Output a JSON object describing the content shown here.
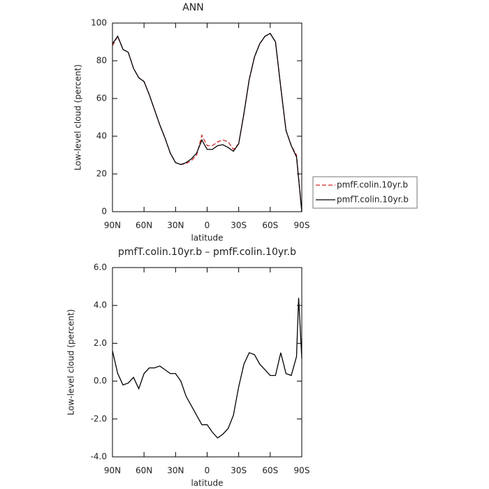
{
  "chart_data": [
    {
      "type": "line",
      "title": "ANN",
      "xlabel": "latitude",
      "ylabel": "Low-level cloud (percent)",
      "x": [
        90,
        85,
        80,
        75,
        70,
        65,
        60,
        55,
        50,
        45,
        40,
        35,
        30,
        25,
        20,
        15,
        10,
        5,
        0,
        -5,
        -10,
        -15,
        -20,
        -25,
        -30,
        -35,
        -40,
        -45,
        -50,
        -55,
        -60,
        -65,
        -70,
        -75,
        -80,
        -85,
        -90
      ],
      "series": [
        {
          "name": "pmfF.colin.10yr.b",
          "color": "#d62728",
          "dashed": true,
          "values": [
            88,
            93,
            86,
            84.5,
            76,
            71,
            69,
            62,
            54,
            46,
            39,
            31,
            26,
            25,
            25.5,
            27,
            30,
            40.5,
            35,
            35,
            37,
            38,
            37,
            33,
            36,
            52,
            70,
            82,
            89,
            93,
            94.5,
            90,
            66,
            43,
            35,
            30,
            0
          ]
        },
        {
          "name": "pmfT.colin.10yr.b",
          "color": "#000000",
          "dashed": false,
          "values": [
            89,
            93,
            86,
            84.5,
            76,
            71,
            69,
            62,
            54,
            46,
            39,
            31,
            26,
            25,
            26,
            28,
            31,
            38,
            33,
            33,
            35,
            35.5,
            34,
            32,
            36,
            52,
            70,
            82,
            89,
            93,
            94.5,
            90,
            66,
            43,
            35,
            29,
            0
          ]
        }
      ],
      "xlim": [
        90,
        -90
      ],
      "xticks": [
        {
          "value": 90,
          "label": "90N"
        },
        {
          "value": 60,
          "label": "60N"
        },
        {
          "value": 30,
          "label": "30N"
        },
        0,
        {
          "value": -30,
          "label": "30S"
        },
        {
          "value": -60,
          "label": "60S"
        },
        {
          "value": -90,
          "label": "90S"
        }
      ],
      "ylim": [
        0,
        100
      ],
      "yticks": [
        0,
        20,
        40,
        60,
        80,
        100
      ],
      "legend": "right"
    },
    {
      "type": "line",
      "title": "pmfT.colin.10yr.b – pmfF.colin.10yr.b",
      "xlabel": "latitude",
      "ylabel": "Low-level cloud (percent)",
      "x": [
        90,
        85,
        80,
        75,
        70,
        65,
        60,
        55,
        50,
        45,
        40,
        35,
        30,
        25,
        20,
        15,
        10,
        5,
        0,
        -5,
        -10,
        -15,
        -20,
        -25,
        -30,
        -35,
        -40,
        -45,
        -50,
        -55,
        -60,
        -65,
        -70,
        -75,
        -80,
        -85,
        -87,
        -90
      ],
      "series": [
        {
          "name": "pmfT.colin.10yr.b – pmfF.colin.10yr.b",
          "color": "#000000",
          "dashed": false,
          "values": [
            1.6,
            0.4,
            -0.2,
            -0.1,
            0.2,
            -0.4,
            0.4,
            0.7,
            0.7,
            0.8,
            0.6,
            0.4,
            0.4,
            0.0,
            -0.8,
            -1.3,
            -1.8,
            -2.3,
            -2.3,
            -2.7,
            -3.0,
            -2.8,
            -2.5,
            -1.8,
            -0.3,
            0.9,
            1.5,
            1.4,
            0.9,
            0.6,
            0.3,
            0.3,
            1.5,
            0.4,
            0.3,
            1.3,
            4.4,
            1.2
          ]
        }
      ],
      "xlim": [
        90,
        -90
      ],
      "xticks": [
        {
          "value": 90,
          "label": "90N"
        },
        {
          "value": 60,
          "label": "60N"
        },
        {
          "value": 30,
          "label": "30N"
        },
        0,
        {
          "value": -30,
          "label": "30S"
        },
        {
          "value": -60,
          "label": "60S"
        },
        {
          "value": -90,
          "label": "90S"
        }
      ],
      "ylim": [
        -4,
        6
      ],
      "yticks": [
        {
          "value": -4,
          "label": "-4.0"
        },
        {
          "value": -2,
          "label": "-2.0"
        },
        {
          "value": 0,
          "label": "0.0"
        },
        {
          "value": 2,
          "label": "2.0"
        },
        {
          "value": 4,
          "label": "4.0"
        },
        {
          "value": 6,
          "label": "6.0"
        }
      ]
    }
  ]
}
